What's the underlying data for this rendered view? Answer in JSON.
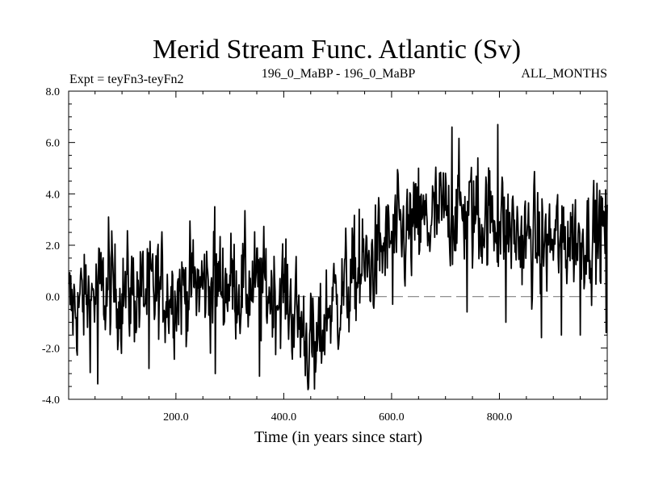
{
  "chart_data": {
    "type": "line",
    "title": "Merid Stream Func. Atlantic (Sv)",
    "subtitle_left": "Expt = teyFn3-teyFn2",
    "subtitle_center": "196_0_MaBP - 196_0_MaBP",
    "subtitle_right": "ALL_MONTHS",
    "xlabel": "Time (in years since start)",
    "ylabel": "",
    "xlim": [
      1,
      1000
    ],
    "ylim": [
      -4.0,
      8.0
    ],
    "x_ticks": [
      200,
      400,
      600,
      800
    ],
    "x_tick_labels": [
      "200.0",
      "400.0",
      "600.0",
      "800.0"
    ],
    "y_ticks": [
      -4,
      -2,
      0,
      2,
      4,
      6,
      8
    ],
    "y_tick_labels": [
      "-4.0",
      "-2.0",
      "0.0",
      "2.0",
      "4.0",
      "6.0",
      "8.0"
    ],
    "reference_line": {
      "y": 0,
      "style": "dashed",
      "color": "#808080"
    },
    "series_color": "#000000",
    "series_summary": "Annual values, ~1000 points: fluctuates around 0 (range about -3.5 to 3.5) for years 1-440, minimum near -3.6 at year ~460, rises through years 470-600 to about 2-3, peaks around 3-4 (max ~6.7) between years 650-800, then stays around 2-2.5 through year 1000",
    "series": [
      {
        "name": "Merid Stream Func. Atlantic",
        "x_start": 1,
        "x_step": 1,
        "trend_anchors_x": [
          1,
          50,
          100,
          150,
          200,
          250,
          300,
          350,
          400,
          430,
          460,
          480,
          520,
          560,
          600,
          640,
          680,
          720,
          760,
          800,
          840,
          880,
          920,
          960,
          1000
        ],
        "trend_anchors_y": [
          -0.5,
          0.1,
          0.2,
          0.1,
          0.3,
          0.4,
          0.6,
          0.3,
          0.2,
          -1.0,
          -2.3,
          -0.5,
          0.4,
          1.2,
          2.2,
          2.5,
          3.0,
          3.4,
          3.1,
          3.0,
          2.2,
          2.0,
          2.3,
          2.5,
          2.5
        ],
        "noise_amplitude": 1.0,
        "peaks": [
          {
            "x": 55,
            "y": -3.4
          },
          {
            "x": 75,
            "y": 3.1
          },
          {
            "x": 150,
            "y": -2.8
          },
          {
            "x": 272,
            "y": 3.5
          },
          {
            "x": 273,
            "y": -3.0
          },
          {
            "x": 355,
            "y": -3.1
          },
          {
            "x": 457,
            "y": -3.6
          },
          {
            "x": 498,
            "y": -0.3
          },
          {
            "x": 540,
            "y": 3.4
          },
          {
            "x": 602,
            "y": -0.3
          },
          {
            "x": 650,
            "y": 5.0
          },
          {
            "x": 712,
            "y": 6.6
          },
          {
            "x": 740,
            "y": -0.6
          },
          {
            "x": 760,
            "y": 5.4
          },
          {
            "x": 797,
            "y": 6.7
          },
          {
            "x": 812,
            "y": -1.0
          },
          {
            "x": 878,
            "y": -1.6
          },
          {
            "x": 915,
            "y": -1.5
          },
          {
            "x": 950,
            "y": -1.5
          },
          {
            "x": 998,
            "y": -1.4
          }
        ]
      }
    ]
  }
}
